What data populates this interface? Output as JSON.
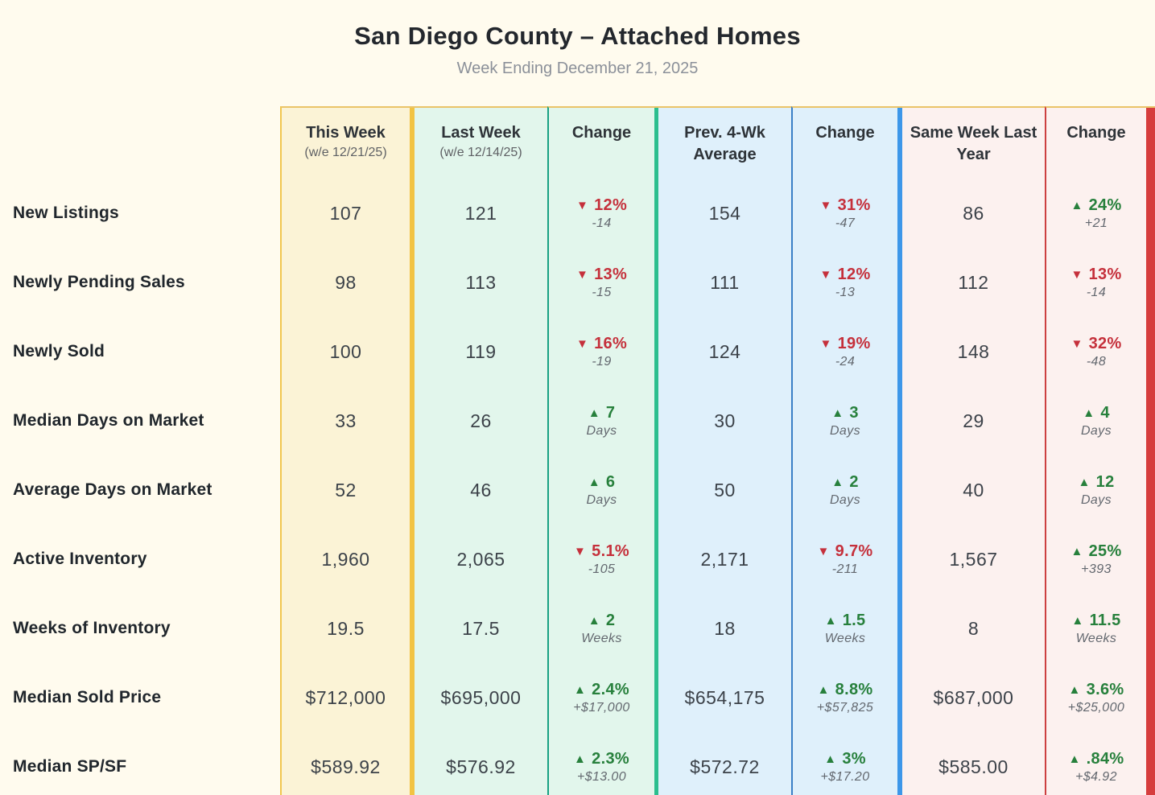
{
  "chart_data": {
    "type": "table",
    "title": "San Diego County – Attached Homes",
    "subtitle": "Week Ending December 21, 2025",
    "columns": [
      {
        "label": "This Week",
        "sublabel": "(w/e 12/21/25)"
      },
      {
        "label": "Last Week",
        "sublabel": "(w/e 12/14/25)"
      },
      {
        "label": "Change"
      },
      {
        "label": "Prev. 4-Wk Average"
      },
      {
        "label": "Change"
      },
      {
        "label": "Same Week Last Year"
      },
      {
        "label": "Change"
      }
    ],
    "rows": [
      {
        "metric": "New Listings",
        "this_week": "107",
        "last_week": "121",
        "change_wow": {
          "dir": "down",
          "arrow": "▼",
          "value": "12%",
          "sub": "-14"
        },
        "prev_4wk_avg": "154",
        "change_vs_4wk": {
          "dir": "down",
          "arrow": "▼",
          "value": "31%",
          "sub": "-47"
        },
        "same_week_last_year": "86",
        "change_vs_last_year": {
          "dir": "up",
          "arrow": "▲",
          "value": "24%",
          "sub": "+21"
        }
      },
      {
        "metric": "Newly Pending Sales",
        "this_week": "98",
        "last_week": "113",
        "change_wow": {
          "dir": "down",
          "arrow": "▼",
          "value": "13%",
          "sub": "-15"
        },
        "prev_4wk_avg": "111",
        "change_vs_4wk": {
          "dir": "down",
          "arrow": "▼",
          "value": "12%",
          "sub": "-13"
        },
        "same_week_last_year": "112",
        "change_vs_last_year": {
          "dir": "down",
          "arrow": "▼",
          "value": "13%",
          "sub": "-14"
        }
      },
      {
        "metric": "Newly Sold",
        "this_week": "100",
        "last_week": "119",
        "change_wow": {
          "dir": "down",
          "arrow": "▼",
          "value": "16%",
          "sub": "-19"
        },
        "prev_4wk_avg": "124",
        "change_vs_4wk": {
          "dir": "down",
          "arrow": "▼",
          "value": "19%",
          "sub": "-24"
        },
        "same_week_last_year": "148",
        "change_vs_last_year": {
          "dir": "down",
          "arrow": "▼",
          "value": "32%",
          "sub": "-48"
        }
      },
      {
        "metric": "Median Days on Market",
        "this_week": "33",
        "last_week": "26",
        "change_wow": {
          "dir": "up",
          "arrow": "▲",
          "value": "7",
          "sub": "Days"
        },
        "prev_4wk_avg": "30",
        "change_vs_4wk": {
          "dir": "up",
          "arrow": "▲",
          "value": "3",
          "sub": "Days"
        },
        "same_week_last_year": "29",
        "change_vs_last_year": {
          "dir": "up",
          "arrow": "▲",
          "value": "4",
          "sub": "Days"
        }
      },
      {
        "metric": "Average Days on Market",
        "this_week": "52",
        "last_week": "46",
        "change_wow": {
          "dir": "up",
          "arrow": "▲",
          "value": "6",
          "sub": "Days"
        },
        "prev_4wk_avg": "50",
        "change_vs_4wk": {
          "dir": "up",
          "arrow": "▲",
          "value": "2",
          "sub": "Days"
        },
        "same_week_last_year": "40",
        "change_vs_last_year": {
          "dir": "up",
          "arrow": "▲",
          "value": "12",
          "sub": "Days"
        }
      },
      {
        "metric": "Active Inventory",
        "this_week": "1,960",
        "last_week": "2,065",
        "change_wow": {
          "dir": "down",
          "arrow": "▼",
          "value": "5.1%",
          "sub": "-105"
        },
        "prev_4wk_avg": "2,171",
        "change_vs_4wk": {
          "dir": "down",
          "arrow": "▼",
          "value": "9.7%",
          "sub": "-211"
        },
        "same_week_last_year": "1,567",
        "change_vs_last_year": {
          "dir": "up",
          "arrow": "▲",
          "value": "25%",
          "sub": "+393"
        }
      },
      {
        "metric": "Weeks of Inventory",
        "this_week": "19.5",
        "last_week": "17.5",
        "change_wow": {
          "dir": "up",
          "arrow": "▲",
          "value": "2",
          "sub": "Weeks"
        },
        "prev_4wk_avg": "18",
        "change_vs_4wk": {
          "dir": "up",
          "arrow": "▲",
          "value": "1.5",
          "sub": "Weeks"
        },
        "same_week_last_year": "8",
        "change_vs_last_year": {
          "dir": "up",
          "arrow": "▲",
          "value": "11.5",
          "sub": "Weeks"
        }
      },
      {
        "metric": "Median Sold Price",
        "this_week": "$712,000",
        "last_week": "$695,000",
        "change_wow": {
          "dir": "up",
          "arrow": "▲",
          "value": "2.4%",
          "sub": "+$17,000"
        },
        "prev_4wk_avg": "$654,175",
        "change_vs_4wk": {
          "dir": "up",
          "arrow": "▲",
          "value": "8.8%",
          "sub": "+$57,825"
        },
        "same_week_last_year": "$687,000",
        "change_vs_last_year": {
          "dir": "up",
          "arrow": "▲",
          "value": "3.6%",
          "sub": "+$25,000"
        }
      },
      {
        "metric": "Median SP/SF",
        "this_week": "$589.92",
        "last_week": "$576.92",
        "change_wow": {
          "dir": "up",
          "arrow": "▲",
          "value": "2.3%",
          "sub": "+$13.00"
        },
        "prev_4wk_avg": "$572.72",
        "change_vs_4wk": {
          "dir": "up",
          "arrow": "▲",
          "value": "3%",
          "sub": "+$17.20"
        },
        "same_week_last_year": "$585.00",
        "change_vs_last_year": {
          "dir": "up",
          "arrow": "▲",
          "value": ".84%",
          "sub": "+$4.92"
        }
      }
    ]
  },
  "colors": {
    "page_background": "#FFFBEE",
    "this_week_column": "#FBF3D6",
    "last_week_section": "#E2F6EC",
    "prev_4wk_section": "#DFF0FB",
    "last_year_section": "#FCF1EF",
    "gold_divider": "#F2C343",
    "teal_divider": "#2CBE8E",
    "blue_divider": "#3D97E9",
    "red_divider": "#D63D3D",
    "increase_green": "#27803C",
    "decrease_red": "#C5303B"
  }
}
